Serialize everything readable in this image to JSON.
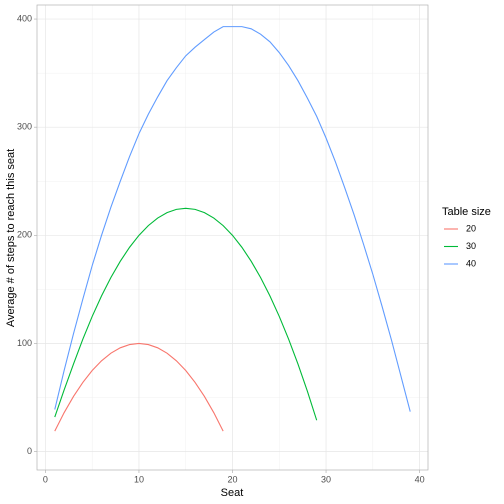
{
  "chart_data": {
    "type": "line",
    "x_label": "Seat",
    "y_label": "Average # of steps to reach this seat",
    "legend_title": "Table size",
    "legend_position": "right",
    "grid": true,
    "xlim": [
      -0.9,
      40.9
    ],
    "xticks": [
      0,
      10,
      20,
      30,
      40
    ],
    "ylim": [
      -17,
      413
    ],
    "yticks": [
      0,
      100,
      200,
      300,
      400
    ],
    "series": [
      {
        "name": "20",
        "color": "#F8766D",
        "x": [
          1,
          2,
          3,
          4,
          5,
          6,
          7,
          8,
          9,
          10,
          11,
          12,
          13,
          14,
          15,
          16,
          17,
          18,
          19
        ],
        "values": [
          19,
          36,
          51,
          64,
          75,
          84,
          91,
          96,
          99,
          100,
          99,
          96,
          91,
          84,
          75,
          64,
          51,
          36,
          19
        ]
      },
      {
        "name": "30",
        "color": "#00BA38",
        "x": [
          1,
          2,
          3,
          4,
          5,
          6,
          7,
          8,
          9,
          10,
          11,
          12,
          13,
          14,
          15,
          16,
          17,
          18,
          19,
          20,
          21,
          22,
          23,
          24,
          25,
          26,
          27,
          28,
          29
        ],
        "values": [
          32,
          57,
          81,
          104,
          125,
          144,
          161,
          176,
          189,
          200,
          209,
          216,
          221,
          224,
          225,
          224,
          221,
          216,
          209,
          200,
          189,
          176,
          161,
          144,
          125,
          104,
          81,
          56,
          29
        ]
      },
      {
        "name": "40",
        "color": "#619CFF",
        "x": [
          1,
          2,
          3,
          4,
          5,
          6,
          7,
          8,
          9,
          10,
          11,
          12,
          13,
          14,
          15,
          16,
          17,
          18,
          19,
          20,
          21,
          22,
          23,
          24,
          25,
          26,
          27,
          28,
          29,
          30,
          31,
          32,
          33,
          34,
          35,
          36,
          37,
          38,
          39
        ],
        "values": [
          39,
          75,
          109,
          141,
          172,
          200,
          226,
          250,
          273,
          294,
          312,
          328,
          343,
          355,
          366,
          374,
          381,
          388,
          393,
          393,
          393,
          391,
          386,
          379,
          369,
          357,
          343,
          327,
          310,
          290,
          268,
          244,
          219,
          192,
          164,
          134,
          103,
          70,
          37
        ]
      }
    ]
  }
}
